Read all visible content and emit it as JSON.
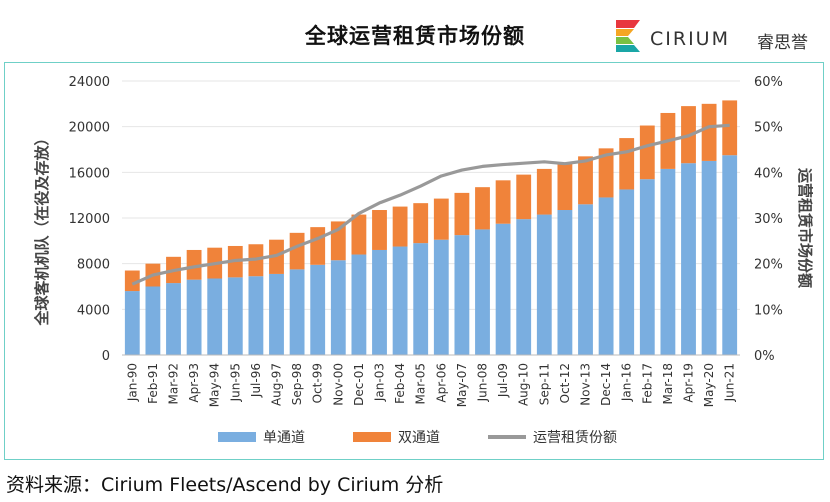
{
  "title": "全球运营租赁市场份额",
  "logo": {
    "name": "CIRIUM",
    "cn": "睿思誉"
  },
  "source": "资料来源：Cirium Fleets/Ascend by Cirium 分析",
  "colors": {
    "single_aisle": "#7aaee0",
    "twin_aisle": "#f0833a",
    "share_line": "#999999",
    "frame": "#6fd0c7"
  },
  "chart_data": {
    "type": "bar",
    "stacked": true,
    "categories": [
      "Jan-90",
      "Feb-91",
      "Mar-92",
      "Apr-93",
      "May-94",
      "Jun-95",
      "Jul-96",
      "Aug-97",
      "Sep-98",
      "Oct-99",
      "Nov-00",
      "Dec-01",
      "Jan-03",
      "Feb-04",
      "Mar-05",
      "Apr-06",
      "May-07",
      "Jun-08",
      "Jul-09",
      "Aug-10",
      "Sep-11",
      "Oct-12",
      "Nov-13",
      "Dec-14",
      "Jan-16",
      "Feb-17",
      "Mar-18",
      "Apr-19",
      "May-20",
      "Jun-21"
    ],
    "series": [
      {
        "name": "单通道",
        "kind": "bar",
        "axis": "left",
        "values": [
          5600,
          6000,
          6300,
          6600,
          6700,
          6800,
          6900,
          7100,
          7500,
          7900,
          8300,
          8800,
          9200,
          9500,
          9800,
          10100,
          10500,
          11000,
          11500,
          11900,
          12300,
          12700,
          13200,
          13800,
          14500,
          15400,
          16300,
          16800,
          17000,
          17500
        ]
      },
      {
        "name": "双通道",
        "kind": "bar",
        "axis": "left",
        "values": [
          1800,
          2000,
          2300,
          2600,
          2700,
          2750,
          2800,
          3000,
          3200,
          3300,
          3400,
          3500,
          3500,
          3500,
          3500,
          3600,
          3700,
          3700,
          3800,
          3900,
          4000,
          4100,
          4200,
          4300,
          4500,
          4700,
          4900,
          5000,
          5000,
          4800
        ]
      },
      {
        "name": "运营租赁份额",
        "kind": "line",
        "axis": "right",
        "values": [
          15.5,
          17.5,
          18.5,
          19.3,
          20.0,
          20.7,
          21.0,
          21.8,
          23.8,
          25.5,
          27.5,
          31.0,
          33.3,
          35.0,
          37.0,
          39.2,
          40.5,
          41.3,
          41.7,
          42.0,
          42.3,
          41.9,
          42.5,
          43.8,
          44.5,
          45.8,
          46.9,
          48.0,
          50.0,
          50.3
        ]
      }
    ],
    "yaxis_left": {
      "label": "全球客机机队（在役及存放）",
      "min": 0,
      "max": 24000,
      "ticks": [
        "0",
        "4000",
        "8000",
        "12000",
        "16000",
        "20000",
        "24000"
      ]
    },
    "yaxis_right": {
      "label": "运营租赁市场份额",
      "min": 0,
      "max": 60,
      "ticks": [
        "0%",
        "10%",
        "20%",
        "30%",
        "40%",
        "50%",
        "60%"
      ]
    },
    "legend_position": "bottom"
  }
}
